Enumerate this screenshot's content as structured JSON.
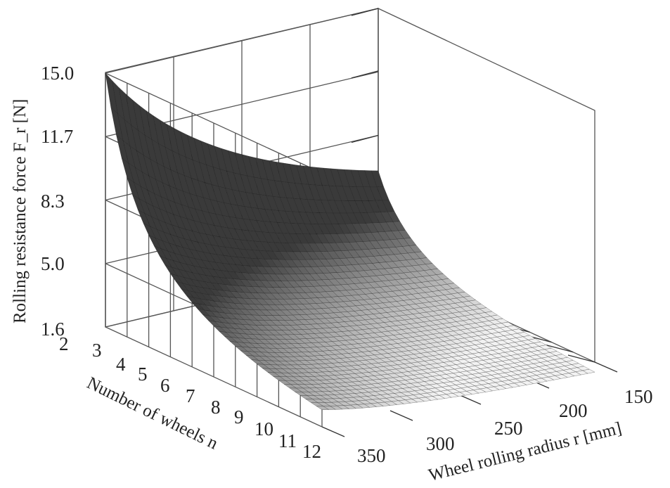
{
  "chart_data": {
    "type": "surface",
    "title": "",
    "xlabel": "Wheel rolling radius r [mm]",
    "ylabel": "Number of wheels n",
    "zlabel": "Rolling resistance force F_r [N]",
    "x_ticks": [
      "150",
      "200",
      "250",
      "300",
      "350"
    ],
    "y_ticks": [
      "2",
      "3",
      "4",
      "5",
      "6",
      "7",
      "8",
      "9",
      "10",
      "11",
      "12"
    ],
    "z_ticks": [
      "1.6",
      "5.0",
      "8.3",
      "11.7",
      "15.0"
    ],
    "xlim": [
      150,
      350
    ],
    "ylim": [
      2,
      12
    ],
    "zlim": [
      1.6,
      15.0
    ],
    "corner_values": [
      {
        "r": 150,
        "n": 2,
        "F": 15.0
      },
      {
        "r": 350,
        "n": 2,
        "F": 3.2
      },
      {
        "r": 150,
        "n": 12,
        "F": 3.4
      },
      {
        "r": 350,
        "n": 12,
        "F": 1.6
      }
    ],
    "grid": true,
    "colormap": "grayscale",
    "colors": {
      "surface_high": "#3a3a3a",
      "surface_low": "#f2f2f2",
      "grid": "#555555",
      "mesh": "#111111"
    }
  }
}
